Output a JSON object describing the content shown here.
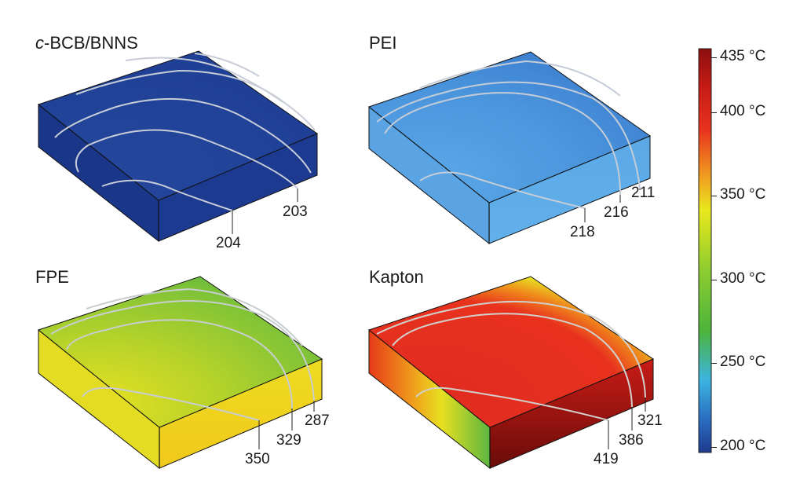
{
  "panels": [
    {
      "prefix": "c",
      "title": "-BCB/BNNS",
      "labels": [
        "204",
        "203"
      ]
    },
    {
      "prefix": "",
      "title": "PEI",
      "labels": [
        "218",
        "216",
        "211"
      ]
    },
    {
      "prefix": "",
      "title": "FPE",
      "labels": [
        "350",
        "329",
        "287"
      ]
    },
    {
      "prefix": "",
      "title": "Kapton",
      "labels": [
        "419",
        "386",
        "321"
      ]
    }
  ],
  "colorbar": {
    "ticks": [
      "435 °C",
      "400 °C",
      "350 °C",
      "300 °C",
      "250 °C",
      "200 °C"
    ],
    "colors": {
      "top": "#8b0f0f",
      "red": "#e0261c",
      "orange": "#f0a020",
      "yellow": "#e8e81c",
      "green": "#4cb43c",
      "cyan": "#3cb4e0",
      "blue": "#1e3a8c"
    }
  }
}
